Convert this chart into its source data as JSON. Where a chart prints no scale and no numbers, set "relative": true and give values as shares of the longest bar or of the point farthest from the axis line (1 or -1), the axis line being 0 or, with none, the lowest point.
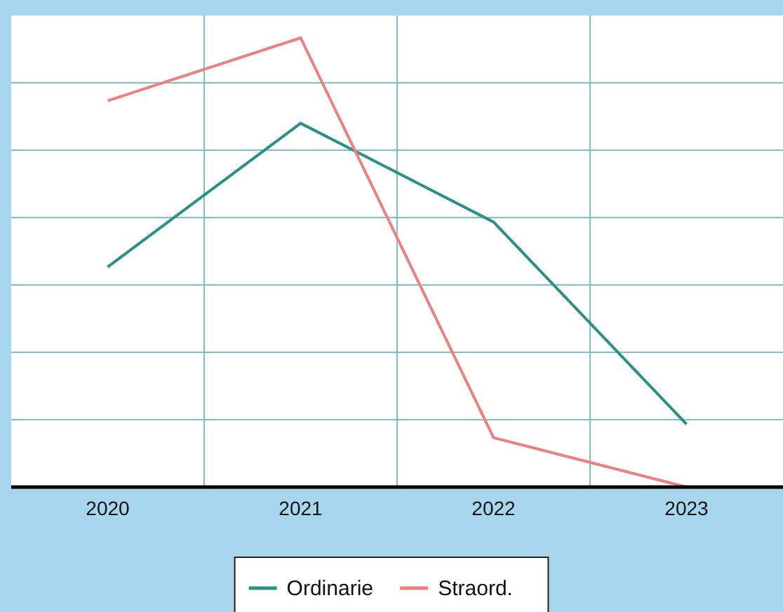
{
  "chart_data": {
    "type": "line",
    "relative": true,
    "categories": [
      "2020",
      "2021",
      "2022",
      "2023"
    ],
    "series": [
      {
        "name": "Ordinarie",
        "color": "#2a9088",
        "values": [
          0.49,
          0.81,
          0.59,
          0.14
        ]
      },
      {
        "name": "Straord.",
        "color": "#ee8080",
        "values": [
          0.86,
          1,
          0.11,
          0
        ]
      }
    ],
    "grid": true,
    "legend": "bottom",
    "marker": "none",
    "line_style": "solid"
  }
}
